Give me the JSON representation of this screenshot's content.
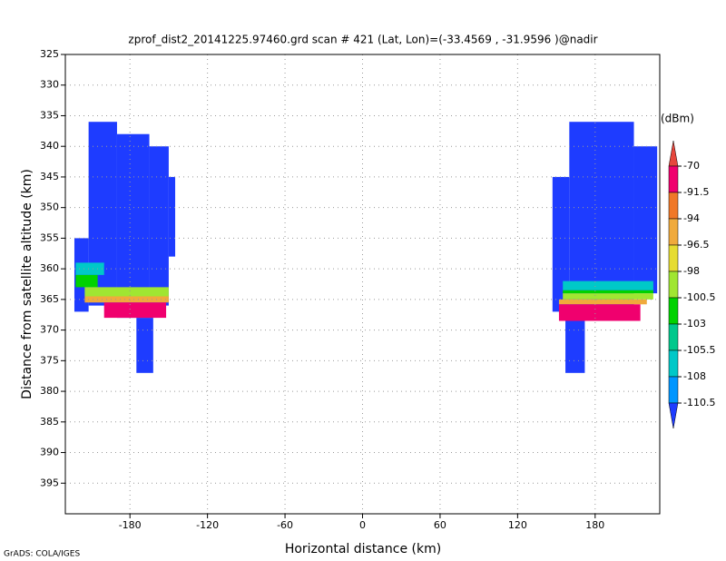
{
  "chart_data": {
    "type": "heatmap",
    "title": "zprof_dist2_20141225.97460.grd  scan # 421  (Lat, Lon)=(-33.4569 , -31.9596 )@nadir",
    "x_label": "Horizontal distance (km)",
    "y_label": "Distance from satellite altitude (km)",
    "footer": "GrADS: COLA/IGES",
    "xlim": [
      -230,
      230
    ],
    "xticks": [
      -180,
      -120,
      -60,
      0,
      60,
      120,
      180
    ],
    "ylim": [
      325,
      400
    ],
    "yticks": [
      325,
      330,
      335,
      340,
      345,
      350,
      355,
      360,
      365,
      370,
      375,
      380,
      385,
      390,
      395
    ],
    "y_reversed": true,
    "grid": true,
    "colorbar": {
      "unit": "(dBm)",
      "levels": [
        -70,
        -91.5,
        -94,
        -96.5,
        -98,
        -100.5,
        -103,
        -105.5,
        -108,
        -110.5
      ],
      "colors": [
        "#e6463c",
        "#f0006e",
        "#f07828",
        "#f0aa3c",
        "#e6dc32",
        "#a0e632",
        "#00d200",
        "#00c88c",
        "#00c8c8",
        "#0096ff",
        "#1e3cff"
      ]
    },
    "cells": [
      {
        "x": [
          -212,
          -190
        ],
        "y": [
          336,
          366
        ],
        "value": -112
      },
      {
        "x": [
          -190,
          -165
        ],
        "y": [
          338,
          368
        ],
        "value": -112
      },
      {
        "x": [
          -165,
          -150
        ],
        "y": [
          340,
          366
        ],
        "value": -112
      },
      {
        "x": [
          -150,
          -145
        ],
        "y": [
          345,
          358
        ],
        "value": -112
      },
      {
        "x": [
          -223,
          -212
        ],
        "y": [
          355,
          367
        ],
        "value": -112
      },
      {
        "x": [
          -175,
          -162
        ],
        "y": [
          368,
          377
        ],
        "value": -112
      },
      {
        "x": [
          -222,
          -200
        ],
        "y": [
          359,
          361
        ],
        "value": -107
      },
      {
        "x": [
          -222,
          -205
        ],
        "y": [
          361,
          363
        ],
        "value": -102
      },
      {
        "x": [
          -215,
          -150
        ],
        "y": [
          363,
          364.5
        ],
        "value": -99
      },
      {
        "x": [
          -215,
          -150
        ],
        "y": [
          364.5,
          365.5
        ],
        "value": -95
      },
      {
        "x": [
          -200,
          -152
        ],
        "y": [
          365.5,
          368
        ],
        "value": -85
      },
      {
        "x": [
          160,
          210
        ],
        "y": [
          336,
          366
        ],
        "value": -112
      },
      {
        "x": [
          147,
          160
        ],
        "y": [
          345,
          367
        ],
        "value": -112
      },
      {
        "x": [
          210,
          228
        ],
        "y": [
          340,
          364
        ],
        "value": -112
      },
      {
        "x": [
          157,
          172
        ],
        "y": [
          368,
          377
        ],
        "value": -112
      },
      {
        "x": [
          155,
          225
        ],
        "y": [
          362,
          363.5
        ],
        "value": -107
      },
      {
        "x": [
          155,
          225
        ],
        "y": [
          363.5,
          364
        ],
        "value": -102
      },
      {
        "x": [
          155,
          225
        ],
        "y": [
          364,
          365
        ],
        "value": -99
      },
      {
        "x": [
          152,
          220
        ],
        "y": [
          365,
          365.8
        ],
        "value": -95
      },
      {
        "x": [
          152,
          215
        ],
        "y": [
          365.8,
          368.5
        ],
        "value": -85
      }
    ]
  }
}
